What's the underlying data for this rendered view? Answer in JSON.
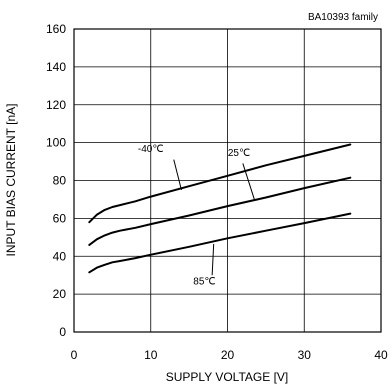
{
  "chart_data": {
    "type": "line",
    "annotation": "BA10393  family",
    "xlabel": "SUPPLY VOLTAGE  [V]",
    "ylabel": "INPUT BIAS CURRENT [nA]",
    "xlim": [
      0,
      40
    ],
    "ylim": [
      0,
      160
    ],
    "xticks": [
      0,
      10,
      20,
      30,
      40
    ],
    "yticks": [
      0,
      20,
      40,
      60,
      80,
      100,
      120,
      140,
      160
    ],
    "grid": true,
    "legend": "none",
    "series": [
      {
        "name": "-40℃",
        "points": [
          [
            2,
            58
          ],
          [
            3,
            62
          ],
          [
            4,
            64.5
          ],
          [
            5,
            66
          ],
          [
            6,
            67
          ],
          [
            8,
            69
          ],
          [
            10,
            71.5
          ],
          [
            15,
            77
          ],
          [
            20,
            82.5
          ],
          [
            25,
            88
          ],
          [
            30,
            93
          ],
          [
            36,
            99
          ]
        ],
        "label_at": [
          10,
          95
        ],
        "leader": [
          [
            13,
            91
          ],
          [
            14,
            75
          ]
        ]
      },
      {
        "name": "25℃",
        "points": [
          [
            2,
            46
          ],
          [
            3,
            49
          ],
          [
            4,
            51
          ],
          [
            5,
            52.5
          ],
          [
            6,
            53.5
          ],
          [
            8,
            55
          ],
          [
            10,
            57
          ],
          [
            15,
            61.5
          ],
          [
            20,
            66.5
          ],
          [
            25,
            71
          ],
          [
            30,
            76
          ],
          [
            36,
            81.5
          ]
        ],
        "label_at": [
          21.5,
          93
        ],
        "leader": [
          [
            22,
            89
          ],
          [
            23.5,
            70
          ]
        ]
      },
      {
        "name": "85℃",
        "points": [
          [
            2,
            31.5
          ],
          [
            3,
            34
          ],
          [
            4,
            35.5
          ],
          [
            5,
            36.8
          ],
          [
            6,
            37.5
          ],
          [
            8,
            39
          ],
          [
            10,
            40.8
          ],
          [
            15,
            45
          ],
          [
            20,
            49.5
          ],
          [
            25,
            53.5
          ],
          [
            30,
            57.5
          ],
          [
            36,
            62.5
          ]
        ],
        "label_at": [
          17,
          25
        ],
        "leader": [
          [
            18,
            30
          ],
          [
            18.2,
            46.5
          ]
        ]
      }
    ]
  }
}
